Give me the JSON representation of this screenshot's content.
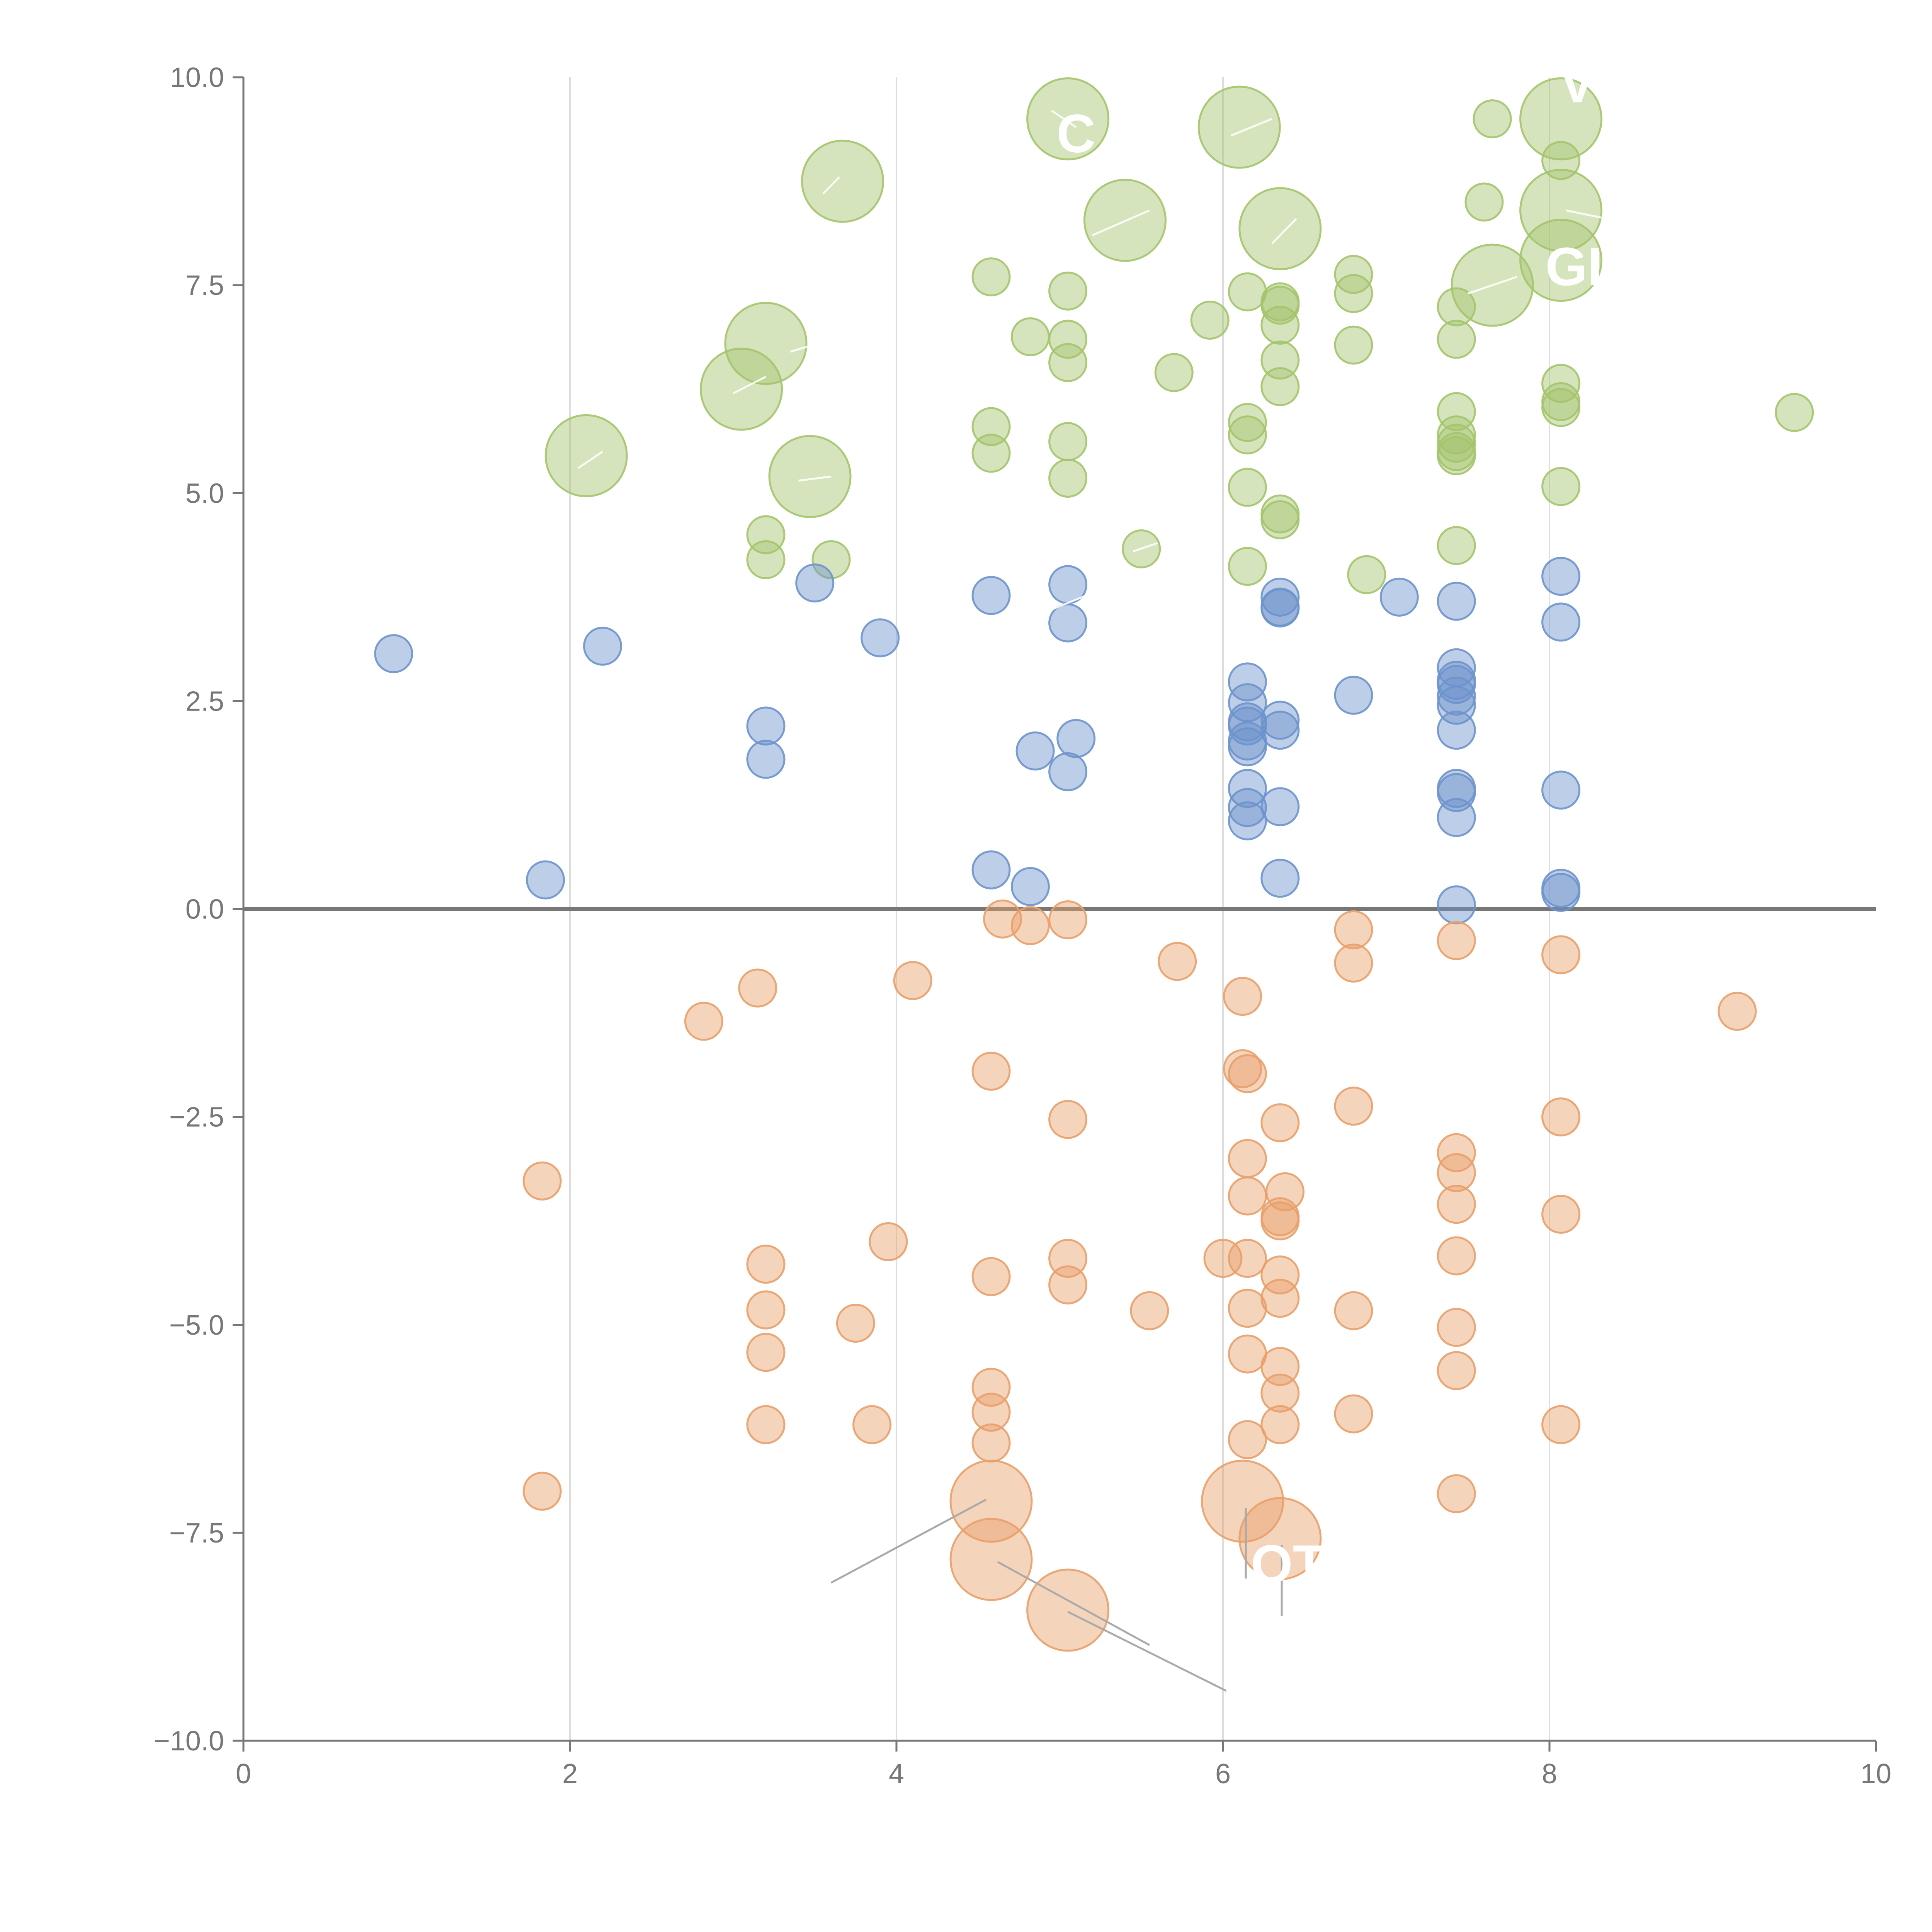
{
  "chart_data": {
    "type": "scatter",
    "title": "",
    "xlabel": "",
    "ylabel": "",
    "xlim": [
      0,
      10
    ],
    "ylim": [
      -10,
      10
    ],
    "x_ticks": [
      "0",
      "2",
      "4",
      "6",
      "8",
      "10"
    ],
    "y_ticks": [
      "−10.0",
      "−7.5",
      "−5.0",
      "−2.5",
      "0.0",
      "2.5",
      "5.0",
      "7.5",
      "10.0"
    ],
    "grid": "vertical",
    "legend": "none",
    "colors": {
      "green": "#a4c46c",
      "blue": "#6d93cc",
      "orange": "#e8a06a",
      "axis": "#777777",
      "grid": "#dddddd"
    },
    "series": [
      {
        "name": "green",
        "points": [
          [
            5.05,
            9.5,
            "big"
          ],
          [
            6.1,
            9.4,
            "big"
          ],
          [
            3.67,
            8.75,
            "big"
          ],
          [
            5.4,
            8.28,
            "big"
          ],
          [
            6.35,
            8.18,
            "big"
          ],
          [
            8.07,
            9.5,
            "big"
          ],
          [
            8.07,
            8.4,
            "big"
          ],
          [
            8.07,
            7.8,
            "big"
          ],
          [
            7.65,
            7.5,
            "big"
          ],
          [
            3.2,
            6.8,
            "big"
          ],
          [
            3.05,
            6.25,
            "big"
          ],
          [
            2.1,
            5.45,
            "big"
          ],
          [
            3.47,
            5.2,
            "big"
          ],
          [
            7.65,
            9.5
          ],
          [
            8.07,
            9.0
          ],
          [
            7.6,
            8.5
          ],
          [
            4.58,
            7.6
          ],
          [
            5.05,
            7.43
          ],
          [
            6.15,
            7.42
          ],
          [
            6.35,
            7.3
          ],
          [
            6.35,
            7.26
          ],
          [
            6.35,
            7.02
          ],
          [
            6.8,
            7.63
          ],
          [
            6.8,
            7.4
          ],
          [
            7.43,
            7.24
          ],
          [
            5.92,
            7.08
          ],
          [
            4.82,
            6.88
          ],
          [
            5.05,
            6.85
          ],
          [
            5.05,
            6.57
          ],
          [
            6.8,
            6.78
          ],
          [
            7.43,
            6.85
          ],
          [
            6.35,
            6.6
          ],
          [
            6.35,
            6.28
          ],
          [
            5.7,
            6.45
          ],
          [
            8.07,
            6.32
          ],
          [
            8.07,
            6.1
          ],
          [
            8.07,
            6.03
          ],
          [
            7.43,
            5.98
          ],
          [
            7.43,
            5.7
          ],
          [
            7.43,
            5.6
          ],
          [
            7.43,
            5.5
          ],
          [
            7.43,
            5.45
          ],
          [
            6.15,
            5.85
          ],
          [
            6.15,
            5.7
          ],
          [
            4.58,
            5.8
          ],
          [
            4.58,
            5.48
          ],
          [
            5.05,
            5.62
          ],
          [
            5.05,
            5.18
          ],
          [
            6.15,
            5.07
          ],
          [
            8.07,
            5.08
          ],
          [
            6.35,
            4.75
          ],
          [
            6.35,
            4.68
          ],
          [
            7.43,
            4.37
          ],
          [
            3.2,
            4.5
          ],
          [
            3.2,
            4.2
          ],
          [
            3.6,
            4.2
          ],
          [
            5.5,
            4.33
          ],
          [
            6.15,
            4.12
          ],
          [
            6.88,
            4.02
          ],
          [
            9.5,
            5.97
          ]
        ]
      },
      {
        "name": "blue",
        "points": [
          [
            3.5,
            3.92
          ],
          [
            4.58,
            3.77
          ],
          [
            5.05,
            3.9
          ],
          [
            5.05,
            3.44
          ],
          [
            3.9,
            3.26
          ],
          [
            2.2,
            3.16
          ],
          [
            0.92,
            3.07
          ],
          [
            6.35,
            3.75
          ],
          [
            6.35,
            3.63
          ],
          [
            6.35,
            3.62
          ],
          [
            7.08,
            3.75
          ],
          [
            7.43,
            3.7
          ],
          [
            8.07,
            4.0
          ],
          [
            8.07,
            3.45
          ],
          [
            6.15,
            2.73
          ],
          [
            6.15,
            2.48
          ],
          [
            6.15,
            2.25
          ],
          [
            6.15,
            2.2
          ],
          [
            6.15,
            2.02
          ],
          [
            6.15,
            1.95
          ],
          [
            6.35,
            2.27
          ],
          [
            6.35,
            2.15
          ],
          [
            6.8,
            2.57
          ],
          [
            7.43,
            2.9
          ],
          [
            7.43,
            2.75
          ],
          [
            7.43,
            2.7
          ],
          [
            7.43,
            2.56
          ],
          [
            7.43,
            2.45
          ],
          [
            7.43,
            2.15
          ],
          [
            3.2,
            2.2
          ],
          [
            3.2,
            1.8
          ],
          [
            4.85,
            1.9
          ],
          [
            5.1,
            2.05
          ],
          [
            5.05,
            1.65
          ],
          [
            6.15,
            1.45
          ],
          [
            6.15,
            1.22
          ],
          [
            6.15,
            1.06
          ],
          [
            6.35,
            1.23
          ],
          [
            7.43,
            1.45
          ],
          [
            7.43,
            1.4
          ],
          [
            7.43,
            1.1
          ],
          [
            8.07,
            1.43
          ],
          [
            1.85,
            0.35
          ],
          [
            4.58,
            0.47
          ],
          [
            4.82,
            0.27
          ],
          [
            6.35,
            0.37
          ],
          [
            7.43,
            0.05
          ],
          [
            8.07,
            0.25
          ],
          [
            8.07,
            0.2
          ]
        ]
      },
      {
        "name": "orange",
        "points": [
          [
            4.65,
            -0.12
          ],
          [
            4.82,
            -0.2
          ],
          [
            5.05,
            -0.13
          ],
          [
            5.72,
            -0.63
          ],
          [
            6.8,
            -0.25
          ],
          [
            6.8,
            -0.65
          ],
          [
            7.43,
            -0.38
          ],
          [
            8.07,
            -0.55
          ],
          [
            3.15,
            -0.95
          ],
          [
            4.1,
            -0.86
          ],
          [
            2.82,
            -1.35
          ],
          [
            6.12,
            -1.05
          ],
          [
            9.15,
            -1.23
          ],
          [
            4.58,
            -1.95
          ],
          [
            6.12,
            -1.92
          ],
          [
            6.15,
            -1.98
          ],
          [
            6.8,
            -2.37
          ],
          [
            5.05,
            -2.53
          ],
          [
            6.35,
            -2.57
          ],
          [
            8.07,
            -2.5
          ],
          [
            7.43,
            -2.93
          ],
          [
            7.43,
            -3.17
          ],
          [
            7.43,
            -3.55
          ],
          [
            6.15,
            -3.0
          ],
          [
            6.15,
            -3.45
          ],
          [
            6.38,
            -3.4
          ],
          [
            6.35,
            -3.7
          ],
          [
            6.35,
            -3.75
          ],
          [
            8.07,
            -3.67
          ],
          [
            1.83,
            -3.27
          ],
          [
            3.95,
            -4.0
          ],
          [
            5.05,
            -4.2
          ],
          [
            5.05,
            -4.52
          ],
          [
            6.0,
            -4.2
          ],
          [
            6.15,
            -4.2
          ],
          [
            6.35,
            -4.4
          ],
          [
            6.35,
            -4.68
          ],
          [
            7.43,
            -4.17
          ],
          [
            3.2,
            -4.27
          ],
          [
            4.58,
            -4.42
          ],
          [
            3.2,
            -4.82
          ],
          [
            3.75,
            -4.98
          ],
          [
            5.55,
            -4.83
          ],
          [
            6.15,
            -4.8
          ],
          [
            6.8,
            -4.83
          ],
          [
            7.43,
            -5.03
          ],
          [
            3.2,
            -5.33
          ],
          [
            6.15,
            -5.35
          ],
          [
            6.35,
            -5.5
          ],
          [
            7.43,
            -5.55
          ],
          [
            4.58,
            -5.75
          ],
          [
            6.35,
            -5.82
          ],
          [
            4.58,
            -6.05
          ],
          [
            6.8,
            -6.07
          ],
          [
            3.2,
            -6.2
          ],
          [
            3.85,
            -6.2
          ],
          [
            6.35,
            -6.2
          ],
          [
            8.07,
            -6.2
          ],
          [
            4.58,
            -6.42
          ],
          [
            6.15,
            -6.38
          ],
          [
            1.83,
            -7.0
          ],
          [
            7.43,
            -7.03
          ],
          [
            4.58,
            -7.12,
            "big"
          ],
          [
            6.12,
            -7.12,
            "big"
          ],
          [
            6.35,
            -7.57,
            "big"
          ],
          [
            4.58,
            -7.82,
            "big"
          ],
          [
            5.05,
            -8.43,
            "big"
          ]
        ]
      }
    ],
    "annotations": [
      {
        "text": "VO",
        "x": 8.3,
        "y": 9.7
      },
      {
        "text": "GI",
        "x": 8.15,
        "y": 7.5
      },
      {
        "text": "C",
        "x": 5.1,
        "y": 9.1
      },
      {
        "text": "OT",
        "x": 6.4,
        "y": -8.1
      }
    ]
  }
}
